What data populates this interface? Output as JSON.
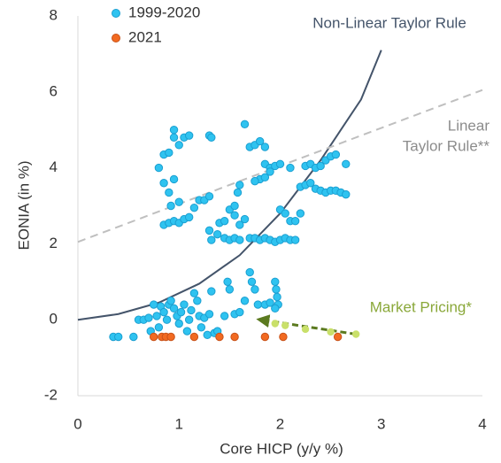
{
  "chart_data": {
    "type": "scatter",
    "x_label": "Core HICP (y/y %)",
    "y_label": "EONIA (in %)",
    "xlim": [
      0,
      4
    ],
    "xticks": [
      0,
      1,
      2,
      3,
      4
    ],
    "ylim": [
      -2,
      8
    ],
    "yticks": [
      -2,
      0,
      2,
      4,
      6,
      8
    ],
    "grid": false,
    "legend": "top-left",
    "series": [
      {
        "name": "1999-2020",
        "color": "#2fc3f0",
        "x": [
          0.35,
          0.4,
          0.55,
          0.6,
          0.65,
          0.7,
          0.72,
          0.75,
          0.78,
          0.8,
          0.82,
          0.85,
          0.88,
          0.9,
          0.92,
          0.95,
          0.98,
          1.0,
          1.02,
          1.05,
          1.08,
          1.1,
          1.12,
          1.15,
          1.18,
          1.2,
          1.22,
          1.25,
          1.28,
          1.3,
          1.32,
          1.35,
          1.38,
          1.45,
          1.48,
          1.5,
          1.55,
          1.6,
          1.65,
          1.7,
          1.72,
          1.75,
          1.78,
          1.85,
          1.9,
          1.95,
          1.96,
          1.97,
          1.98,
          1.95,
          0.85,
          0.9,
          0.95,
          1.0,
          1.05,
          1.1,
          1.15,
          1.2,
          1.25,
          0.92,
          1.0,
          0.85,
          0.9,
          0.95,
          0.8,
          0.85,
          0.9,
          0.95,
          1.0,
          1.05,
          1.1,
          0.95,
          1.3,
          1.32,
          1.65,
          1.7,
          1.75,
          1.8,
          1.85,
          1.85,
          1.9,
          1.95,
          2.0,
          2.1,
          1.8,
          1.85,
          1.9,
          1.6,
          1.58,
          1.75,
          1.3,
          1.32,
          1.38,
          1.4,
          1.45,
          1.5,
          1.55,
          1.6,
          1.65,
          1.45,
          1.5,
          1.55,
          1.6,
          1.7,
          1.75,
          1.8,
          1.85,
          1.9,
          1.95,
          2.0,
          2.05,
          2.1,
          2.15,
          2.0,
          2.05,
          2.1,
          2.15,
          2.2,
          2.25,
          2.3,
          2.35,
          2.4,
          2.45,
          2.5,
          2.55,
          2.6,
          2.65,
          2.25,
          2.3,
          2.35,
          2.4,
          2.45,
          2.5,
          2.55,
          2.65,
          2.2,
          1.3,
          1.55
        ],
        "y": [
          -0.45,
          -0.45,
          -0.45,
          0.0,
          0.0,
          0.05,
          -0.3,
          0.4,
          0.1,
          -0.2,
          0.35,
          0.2,
          0.0,
          0.4,
          0.5,
          0.3,
          0.1,
          -0.1,
          0.2,
          0.4,
          -0.3,
          0.0,
          0.25,
          0.7,
          0.5,
          0.1,
          -0.2,
          0.05,
          -0.4,
          0.15,
          0.75,
          -0.35,
          -0.3,
          0.1,
          1.0,
          0.8,
          0.15,
          0.2,
          0.5,
          1.25,
          1.0,
          0.8,
          0.4,
          0.4,
          0.45,
          1.0,
          0.8,
          0.6,
          0.4,
          0.3,
          2.5,
          2.55,
          2.6,
          2.55,
          2.65,
          2.7,
          2.95,
          3.15,
          3.15,
          3.0,
          3.1,
          3.6,
          3.35,
          3.7,
          4.0,
          4.35,
          4.4,
          4.8,
          4.6,
          4.8,
          4.85,
          5.0,
          4.85,
          4.8,
          5.15,
          4.55,
          4.6,
          4.7,
          4.55,
          4.1,
          4.0,
          4.05,
          4.1,
          4.0,
          3.7,
          3.75,
          3.9,
          3.55,
          3.35,
          3.65,
          2.35,
          2.1,
          2.25,
          2.55,
          2.6,
          2.9,
          2.75,
          2.5,
          2.65,
          2.15,
          2.1,
          2.15,
          2.1,
          2.15,
          2.15,
          2.1,
          2.15,
          2.1,
          2.05,
          2.1,
          2.15,
          2.1,
          2.1,
          2.9,
          2.8,
          2.6,
          2.6,
          3.5,
          3.55,
          3.6,
          3.45,
          3.4,
          3.35,
          3.4,
          3.4,
          3.35,
          3.3,
          4.05,
          4.1,
          4.0,
          4.05,
          4.2,
          4.3,
          4.35,
          4.1,
          2.8,
          3.25,
          3.0
        ]
      },
      {
        "name": "2021",
        "color": "#f26a21",
        "x": [
          0.75,
          0.83,
          0.87,
          0.92,
          1.15,
          1.4,
          1.55,
          1.85,
          2.03,
          2.57
        ],
        "y": [
          -0.45,
          -0.45,
          -0.45,
          -0.45,
          -0.45,
          -0.45,
          -0.45,
          -0.45,
          -0.45,
          -0.45
        ]
      }
    ],
    "lines": [
      {
        "label": [
          "Non-Linear Taylor Rule"
        ],
        "color": "#44546a",
        "dashed": false,
        "x": [
          0,
          0.4,
          0.8,
          1.2,
          1.6,
          2.0,
          2.4,
          2.6,
          2.8,
          3.0
        ],
        "y": [
          0,
          0.15,
          0.45,
          0.95,
          1.7,
          2.8,
          4.2,
          5.0,
          5.8,
          7.1
        ]
      },
      {
        "label": [
          "Linear",
          "Taylor Rule**"
        ],
        "color": "#bfbfbf",
        "dashed": true,
        "x": [
          0,
          4
        ],
        "y": [
          2.05,
          6.05
        ]
      }
    ],
    "market_pricing": {
      "label": "Market Pricing*",
      "color": "#c9e06a",
      "arrow_color": "#5b7a1f",
      "text_color": "#8aa83a",
      "x": [
        1.95,
        2.05,
        2.25,
        2.5,
        2.75
      ],
      "y": [
        -0.1,
        -0.15,
        -0.25,
        -0.32,
        -0.38
      ]
    }
  }
}
